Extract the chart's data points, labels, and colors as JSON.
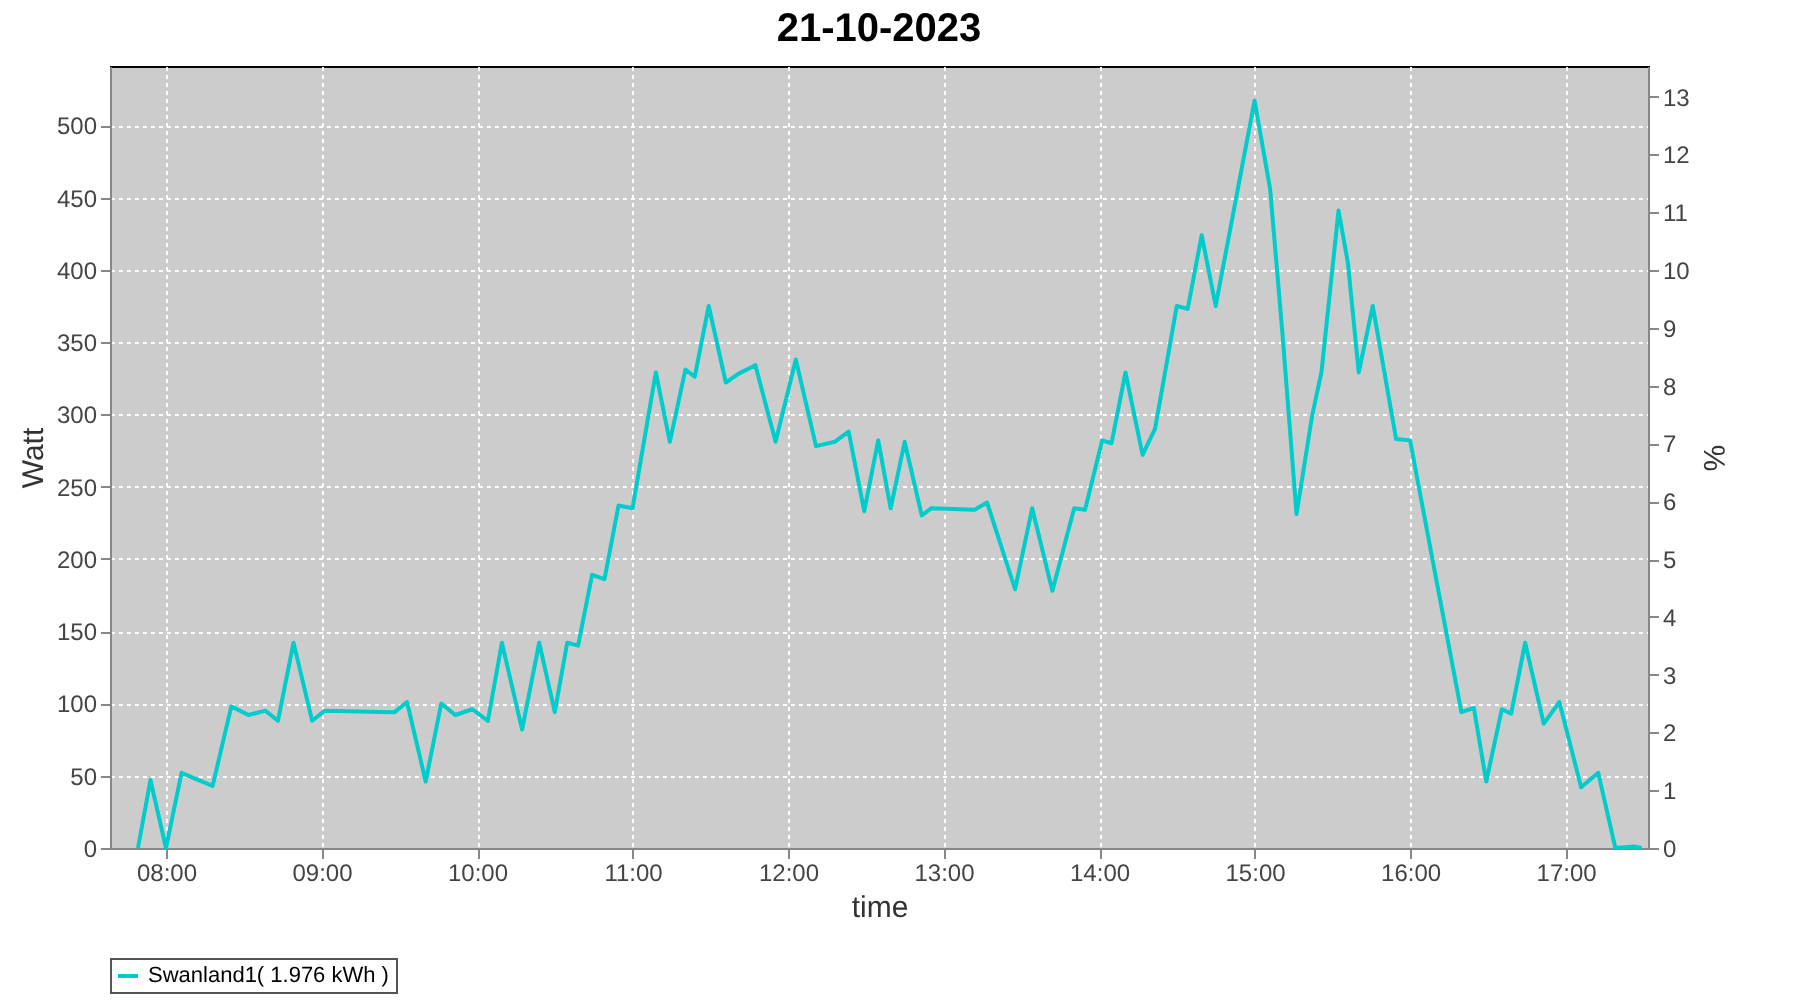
{
  "chart_data": {
    "type": "line",
    "title": "21-10-2023",
    "xlabel": "time",
    "ylabel": "Watt",
    "y2label": "%",
    "x": [
      7.82,
      7.9,
      8.0,
      8.1,
      8.21,
      8.3,
      8.42,
      8.53,
      8.64,
      8.72,
      8.82,
      8.94,
      9.02,
      9.47,
      9.55,
      9.67,
      9.77,
      9.86,
      9.97,
      10.07,
      10.16,
      10.29,
      10.4,
      10.5,
      10.58,
      10.65,
      10.74,
      10.82,
      10.91,
      11.0,
      11.15,
      11.24,
      11.34,
      11.4,
      11.49,
      11.6,
      11.68,
      11.79,
      11.92,
      12.05,
      12.18,
      12.3,
      12.39,
      12.49,
      12.58,
      12.66,
      12.75,
      12.86,
      12.92,
      13.2,
      13.28,
      13.46,
      13.57,
      13.7,
      13.84,
      13.91,
      14.02,
      14.08,
      14.17,
      14.28,
      14.36,
      14.5,
      14.57,
      14.66,
      14.75,
      15.0,
      15.1,
      15.18,
      15.27,
      15.37,
      15.43,
      15.54,
      15.6,
      15.67,
      15.76,
      15.91,
      16.0,
      16.14,
      16.33,
      16.41,
      16.49,
      16.59,
      16.65,
      16.74,
      16.86,
      16.96,
      17.1,
      17.21,
      17.32,
      17.44,
      17.49
    ],
    "series": [
      {
        "name": "Swanland1( 1.976 kWh )",
        "color": "#00cccc",
        "values": [
          0,
          47,
          0,
          52,
          47,
          43,
          98,
          92,
          95,
          88,
          142,
          88,
          95,
          94,
          101,
          46,
          100,
          92,
          96,
          88,
          142,
          82,
          142,
          94,
          142,
          140,
          189,
          186,
          237,
          235,
          329,
          281,
          331,
          326,
          375,
          322,
          328,
          334,
          281,
          338,
          278,
          281,
          288,
          233,
          282,
          235,
          281,
          230,
          235,
          234,
          239,
          179,
          235,
          178,
          235,
          234,
          282,
          280,
          329,
          272,
          290,
          375,
          373,
          424,
          375,
          517,
          456,
          355,
          231,
          299,
          329,
          441,
          405,
          329,
          375,
          283,
          282,
          202,
          94,
          97,
          46,
          96,
          93,
          142,
          86,
          101,
          42,
          52,
          0,
          1,
          0
        ]
      }
    ],
    "xlim": [
      7.64,
      17.53
    ],
    "xticks": [
      {
        "value": 8,
        "label": "08:00"
      },
      {
        "value": 9,
        "label": "09:00"
      },
      {
        "value": 10,
        "label": "10:00"
      },
      {
        "value": 11,
        "label": "11:00"
      },
      {
        "value": 12,
        "label": "12:00"
      },
      {
        "value": 13,
        "label": "13:00"
      },
      {
        "value": 14,
        "label": "14:00"
      },
      {
        "value": 15,
        "label": "15:00"
      },
      {
        "value": 16,
        "label": "16:00"
      },
      {
        "value": 17,
        "label": "17:00"
      }
    ],
    "ylim": [
      0,
      541
    ],
    "yticks": [
      0,
      50,
      100,
      150,
      200,
      250,
      300,
      350,
      400,
      450,
      500
    ],
    "y2lim": [
      0,
      13.53
    ],
    "y2ticks": [
      0,
      1,
      2,
      3,
      4,
      5,
      6,
      7,
      8,
      9,
      10,
      11,
      12,
      13
    ],
    "grid": true,
    "legend": "bottom"
  }
}
